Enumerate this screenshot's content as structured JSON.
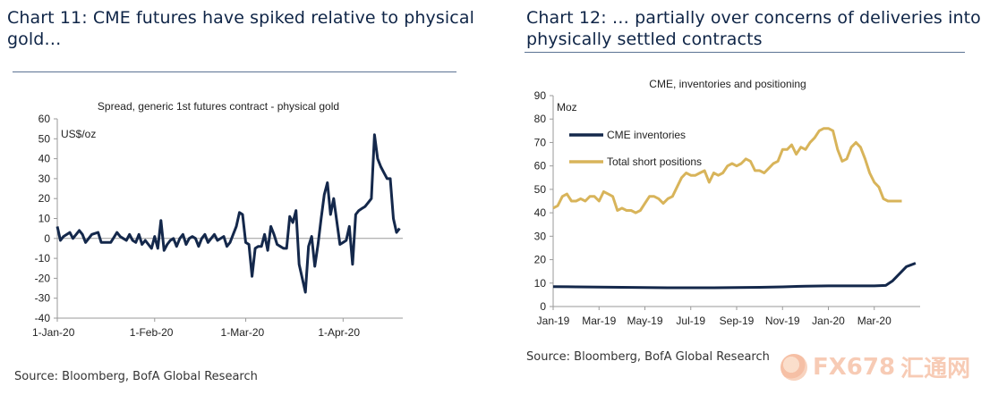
{
  "left": {
    "title_line1": "Chart 11: CME futures have spiked relative to physical",
    "title_line2": "gold…",
    "source": "Source: Bloomberg, BofA Global Research"
  },
  "right": {
    "title_line1": "Chart 12: … partially over concerns of deliveries into",
    "title_line2": "physically settled contracts",
    "source": "Source: Bloomberg, BofA Global Research"
  },
  "watermark": {
    "text": "FX678",
    "text2": "汇通网"
  },
  "chart_data": [
    {
      "type": "line",
      "title": "Spread, generic 1st futures contract - physical gold",
      "ylabel": "US$/oz",
      "xlabel": "",
      "ylim": [
        -40,
        60
      ],
      "yticks": [
        60,
        50,
        40,
        30,
        20,
        10,
        0,
        -10,
        -20,
        -30,
        -40
      ],
      "x_range_days": [
        0,
        110
      ],
      "xticks": [
        {
          "label": "1-Jan-20",
          "day": 0
        },
        {
          "label": "1-Feb-20",
          "day": 31
        },
        {
          "label": "1-Mar-20",
          "day": 60
        },
        {
          "label": "1-Apr-20",
          "day": 91
        }
      ],
      "series": [
        {
          "name": "Spread",
          "color": "#14284b",
          "days": [
            0,
            1,
            2,
            4,
            5,
            7,
            8,
            9,
            10,
            11,
            13,
            14,
            15,
            17,
            19,
            20,
            21,
            22,
            23,
            24,
            25,
            26,
            27,
            28,
            29,
            30,
            31,
            32,
            33,
            34,
            35,
            36,
            37,
            38,
            39,
            40,
            41,
            42,
            43,
            44,
            45,
            46,
            47,
            48,
            49,
            50,
            51,
            53,
            54,
            55,
            56,
            57,
            58,
            59,
            60,
            61,
            62,
            63,
            64,
            65,
            66,
            67,
            68,
            69,
            70,
            71,
            72,
            73,
            74,
            75,
            76,
            77,
            78,
            79,
            80,
            81,
            82,
            83,
            84,
            85,
            86,
            87,
            88,
            90,
            91,
            92,
            93,
            94,
            95,
            96,
            97,
            98,
            99,
            100,
            101,
            102,
            103,
            104,
            105,
            106,
            107,
            108,
            109
          ],
          "values": [
            6,
            -1,
            1,
            3,
            0,
            4,
            2,
            -2,
            0,
            2,
            3,
            -2,
            -2,
            -2,
            3,
            1,
            0,
            -1,
            2,
            -1,
            -2,
            2,
            -3,
            -1,
            -3,
            -5,
            1,
            -5,
            9,
            -6,
            -3,
            -1,
            0,
            -4,
            0,
            2,
            -3,
            0,
            1,
            0,
            -4,
            0,
            2,
            -2,
            0,
            2,
            -1,
            1,
            -4,
            -2,
            2,
            6,
            13,
            12,
            -2,
            -3,
            -19,
            -5,
            -4,
            -4,
            2,
            -6,
            6,
            2,
            -3,
            -4,
            -5,
            -5,
            11,
            8,
            14,
            -13,
            -20,
            -27,
            -4,
            1,
            -14,
            -3,
            10,
            22,
            28,
            12,
            20,
            -3,
            -2,
            -1,
            6,
            -13,
            12,
            14,
            15,
            16,
            18,
            20,
            52,
            40,
            36,
            33,
            30,
            30,
            10,
            3,
            5
          ],
          "labels_shown": false
        }
      ]
    },
    {
      "type": "line",
      "title": "CME, inventories and positioning",
      "ylabel": "Moz",
      "xlabel": "",
      "ylim": [
        0,
        90
      ],
      "yticks": [
        90,
        80,
        70,
        60,
        50,
        40,
        30,
        20,
        10,
        0
      ],
      "x_range_months": [
        0,
        16
      ],
      "xticks": [
        {
          "label": "Jan-19",
          "month": 0
        },
        {
          "label": "Mar-19",
          "month": 2
        },
        {
          "label": "May-19",
          "month": 4
        },
        {
          "label": "Jul-19",
          "month": 6
        },
        {
          "label": "Sep-19",
          "month": 8
        },
        {
          "label": "Nov-19",
          "month": 10
        },
        {
          "label": "Jan-20",
          "month": 12
        },
        {
          "label": "Mar-20",
          "month": 14
        }
      ],
      "legend_placement": "top-left",
      "series": [
        {
          "name": "CME inventories",
          "color": "#14284b",
          "x": [
            0,
            1,
            2,
            3,
            4,
            5,
            6,
            7,
            8,
            9,
            10,
            11,
            12,
            13,
            14,
            14.5,
            14.8,
            15.0,
            15.4,
            15.8
          ],
          "values": [
            8.5,
            8.4,
            8.3,
            8.2,
            8.1,
            8.0,
            8.0,
            8.0,
            8.1,
            8.2,
            8.4,
            8.7,
            8.8,
            8.8,
            8.8,
            9,
            11,
            13,
            17,
            18.5
          ]
        },
        {
          "name": "Total short positions",
          "color": "#d8b45a",
          "x": [
            0,
            0.2,
            0.4,
            0.6,
            0.8,
            1.0,
            1.2,
            1.4,
            1.6,
            1.8,
            2.0,
            2.2,
            2.4,
            2.6,
            2.8,
            3.0,
            3.2,
            3.4,
            3.6,
            3.8,
            4.0,
            4.2,
            4.4,
            4.6,
            4.8,
            5.0,
            5.2,
            5.4,
            5.6,
            5.8,
            6.0,
            6.2,
            6.4,
            6.6,
            6.8,
            7.0,
            7.2,
            7.4,
            7.6,
            7.8,
            8.0,
            8.2,
            8.4,
            8.6,
            8.8,
            9.0,
            9.2,
            9.4,
            9.6,
            9.8,
            10.0,
            10.2,
            10.4,
            10.6,
            10.8,
            11.0,
            11.2,
            11.4,
            11.6,
            11.8,
            12.0,
            12.2,
            12.4,
            12.6,
            12.8,
            13.0,
            13.2,
            13.4,
            13.6,
            13.8,
            14.0,
            14.2,
            14.4,
            14.6,
            14.8,
            15.0,
            15.2
          ],
          "values": [
            42,
            43,
            47,
            48,
            45,
            45,
            46,
            45,
            47,
            47,
            45,
            49,
            48,
            47,
            41,
            42,
            41,
            41,
            40,
            41,
            44,
            47,
            47,
            46,
            44,
            46,
            47,
            51,
            55,
            57,
            56,
            56,
            57,
            58,
            53,
            57,
            56,
            57,
            60,
            61,
            60,
            61,
            63,
            62,
            58,
            58,
            57,
            59,
            61,
            62,
            67,
            67,
            69,
            65,
            68,
            67,
            70,
            72,
            75,
            76,
            76,
            75,
            67,
            62,
            63,
            68,
            70,
            68,
            63,
            57,
            53,
            51,
            46,
            45,
            45,
            45,
            45
          ]
        }
      ]
    }
  ]
}
